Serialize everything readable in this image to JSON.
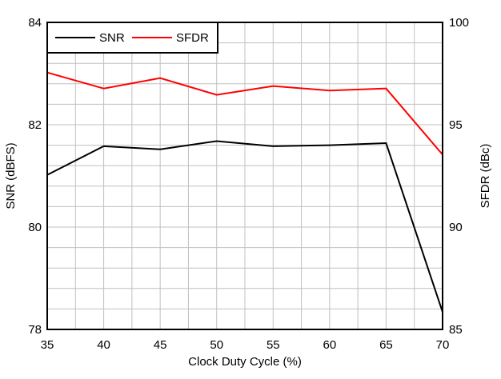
{
  "chart_data": {
    "type": "line",
    "xlabel": "Clock Duty Cycle (%)",
    "ylabel": "SNR (dBFS)",
    "y2label": "SFDR (dBc)",
    "x": [
      35,
      40,
      45,
      50,
      55,
      60,
      65,
      70
    ],
    "xlim": [
      35,
      70
    ],
    "ylim": [
      78,
      84
    ],
    "y2lim": [
      85,
      100
    ],
    "xticks": [
      "35",
      "40",
      "45",
      "50",
      "55",
      "60",
      "65",
      "70"
    ],
    "yticks": [
      "78",
      "80",
      "82",
      "84"
    ],
    "y2ticks": [
      "85",
      "90",
      "95",
      "100"
    ],
    "grid": true,
    "legend_position": "top-left",
    "series": [
      {
        "name": "SNR",
        "axis": "left",
        "color": "#000000",
        "values": [
          81.02,
          81.58,
          81.52,
          81.68,
          81.58,
          81.6,
          81.64,
          78.34
        ]
      },
      {
        "name": "SFDR",
        "axis": "right",
        "color": "#ff0000",
        "values": [
          97.55,
          96.77,
          97.28,
          96.46,
          96.89,
          96.67,
          96.77,
          93.54
        ]
      }
    ]
  }
}
